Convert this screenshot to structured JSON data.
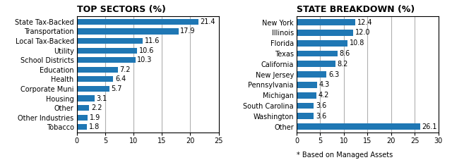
{
  "chart_data": [
    {
      "type": "bar",
      "orientation": "horizontal",
      "title": "TOP SECTORS (%)",
      "categories": [
        "Tobacco",
        "Other Industries",
        "Other",
        "Housing",
        "Corporate Muni",
        "Health",
        "Education",
        "School Districts",
        "Utility",
        "Local Tax-Backed",
        "Transportation",
        "State Tax-Backed"
      ],
      "values": [
        1.8,
        1.9,
        2.2,
        3.1,
        5.7,
        6.4,
        7.2,
        10.3,
        10.6,
        11.6,
        17.9,
        21.4
      ],
      "xlim": [
        0,
        25
      ],
      "xticks": [
        0,
        5,
        10,
        15,
        20,
        25
      ],
      "grid": true,
      "data_labels": true
    },
    {
      "type": "bar",
      "orientation": "horizontal",
      "title": "STATE BREAKDOWN (%)",
      "categories": [
        "Other",
        "Washington",
        "South Carolina",
        "Michigan",
        "Pennsylvania",
        "New Jersey",
        "California",
        "Texas",
        "Florida",
        "Illinois",
        "New York"
      ],
      "values": [
        26.1,
        3.6,
        3.6,
        4.2,
        4.3,
        6.3,
        8.2,
        8.6,
        10.8,
        12.0,
        12.4
      ],
      "xlim": [
        0,
        30
      ],
      "xticks": [
        0,
        5,
        10,
        15,
        20,
        25,
        30
      ],
      "grid": true,
      "data_labels": true,
      "footnote": "* Based on Managed Assets"
    }
  ]
}
